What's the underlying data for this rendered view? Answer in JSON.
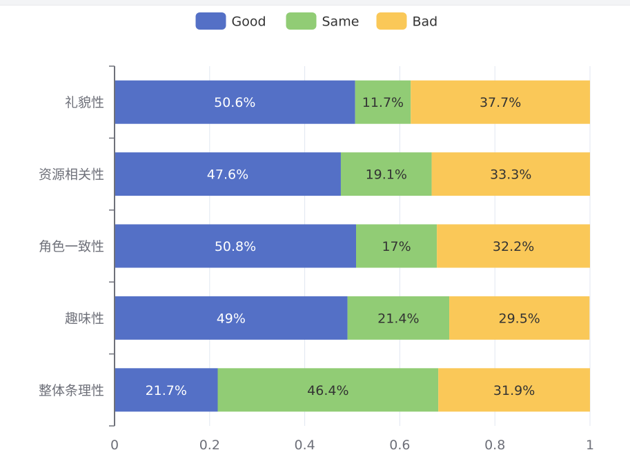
{
  "chart_data": {
    "type": "bar",
    "orientation": "horizontal",
    "stacked": true,
    "categories": [
      "礼貌性",
      "资源相关性",
      "角色一致性",
      "趣味性",
      "整体条理性"
    ],
    "series": [
      {
        "name": "Good",
        "color": "#5470c6",
        "values": [
          0.506,
          0.476,
          0.508,
          0.49,
          0.217
        ],
        "labels": [
          "50.6%",
          "47.6%",
          "50.8%",
          "49%",
          "21.7%"
        ],
        "label_color": "#ffffff"
      },
      {
        "name": "Same",
        "color": "#91cc75",
        "values": [
          0.117,
          0.191,
          0.17,
          0.214,
          0.464
        ],
        "labels": [
          "11.7%",
          "19.1%",
          "17%",
          "21.4%",
          "46.4%"
        ],
        "label_color": "#333333"
      },
      {
        "name": "Bad",
        "color": "#fac858",
        "values": [
          0.377,
          0.333,
          0.322,
          0.295,
          0.319
        ],
        "labels": [
          "37.7%",
          "33.3%",
          "32.2%",
          "29.5%",
          "31.9%"
        ],
        "label_color": "#333333"
      }
    ],
    "xlim": [
      0,
      1
    ],
    "xticks": [
      "0",
      "0.2",
      "0.4",
      "0.6",
      "0.8",
      "1"
    ],
    "legend_position": "top-center",
    "grid": true,
    "title": "",
    "xlabel": "",
    "ylabel": ""
  }
}
